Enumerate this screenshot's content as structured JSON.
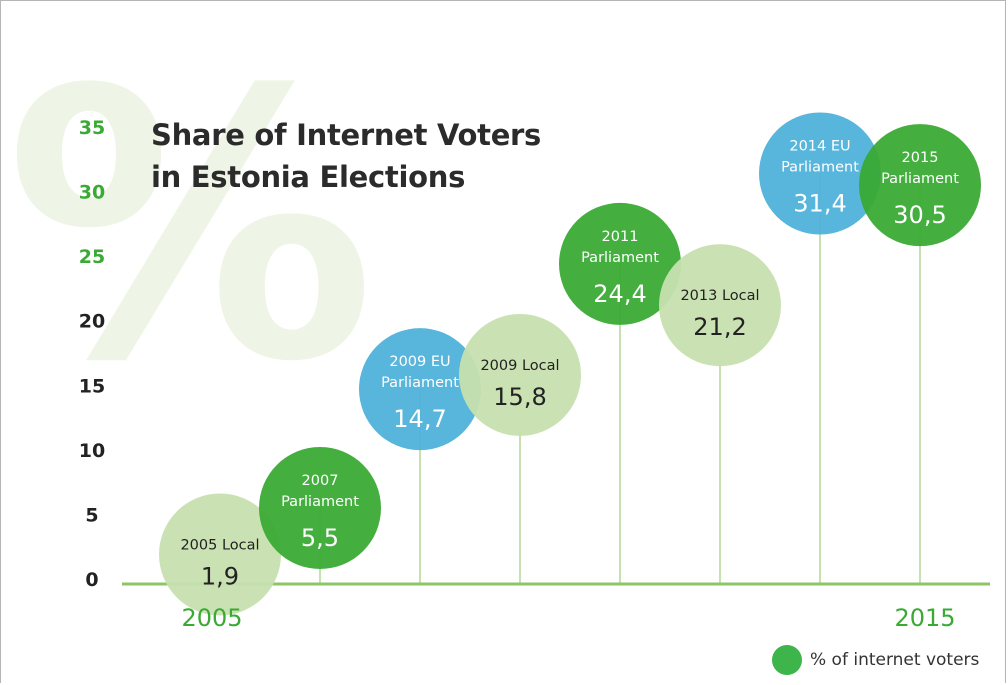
{
  "title_line1": "Share of Internet Voters",
  "title_line2": "in Estonia Elections",
  "watermark": "%",
  "legend_label": "% of internet voters",
  "colors": {
    "light_green": "#c7e0af",
    "dark_green": "#3aaa35",
    "blue": "#4fb1d9",
    "axis_green": "#8cc665",
    "tick_green": "#3aaa35",
    "tick_dark": "#222222",
    "watermark": "#eef5e6"
  },
  "chart_data": {
    "type": "scatter",
    "title": "Share of Internet Voters in Estonia Elections",
    "xlabel": "",
    "ylabel": "",
    "ylim": [
      0,
      35
    ],
    "yticks": [
      "0",
      "5",
      "10",
      "15",
      "20",
      "25",
      "30",
      "35"
    ],
    "x_start_label": "2005",
    "x_end_label": "2015",
    "legend": "bottom-right",
    "points": [
      {
        "label_lines": [
          "2005 Local"
        ],
        "value": 1.9,
        "value_label": "1,9",
        "color": "light_green"
      },
      {
        "label_lines": [
          "2007",
          "Parliament"
        ],
        "value": 5.5,
        "value_label": "5,5",
        "color": "dark_green"
      },
      {
        "label_lines": [
          "2009 EU",
          "Parliament"
        ],
        "value": 14.7,
        "value_label": "14,7",
        "color": "blue"
      },
      {
        "label_lines": [
          "2009 Local"
        ],
        "value": 15.8,
        "value_label": "15,8",
        "color": "light_green"
      },
      {
        "label_lines": [
          "2011",
          "Parliament"
        ],
        "value": 24.4,
        "value_label": "24,4",
        "color": "dark_green"
      },
      {
        "label_lines": [
          "2013 Local"
        ],
        "value": 21.2,
        "value_label": "21,2",
        "color": "light_green"
      },
      {
        "label_lines": [
          "2014 EU",
          "Parliament"
        ],
        "value": 31.4,
        "value_label": "31,4",
        "color": "blue"
      },
      {
        "label_lines": [
          "2015",
          "Parliament"
        ],
        "value": 30.5,
        "value_label": "30,5",
        "color": "dark_green"
      }
    ]
  }
}
